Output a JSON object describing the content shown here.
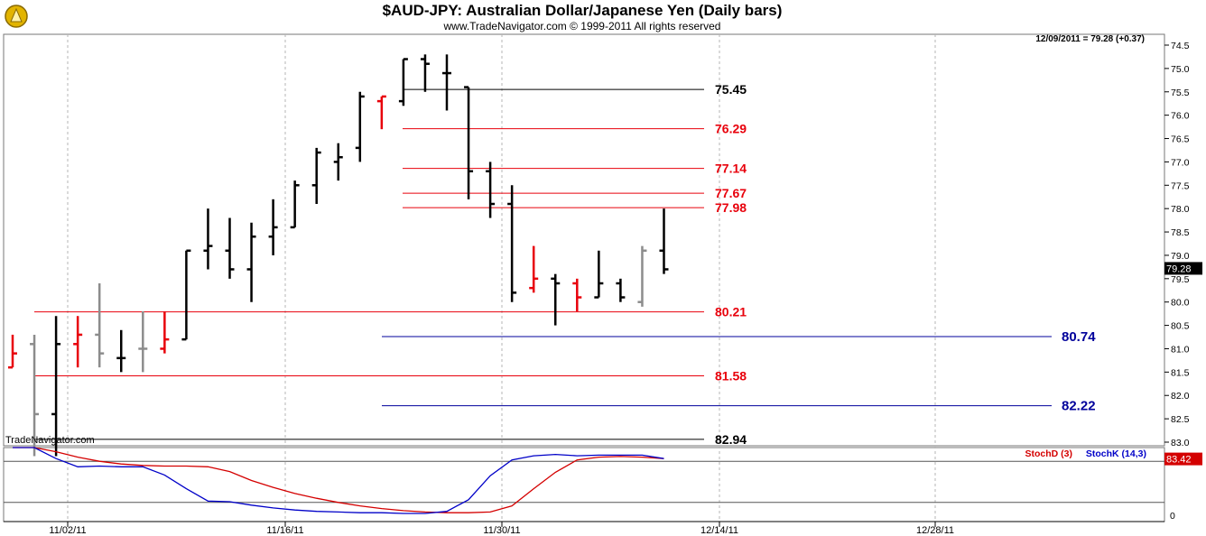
{
  "title": "$AUD-JPY:  Australian Dollar/Japanese Yen  (Daily bars)",
  "subtitle": "www.TradeNavigator.com © 1999-2011 All rights reserved",
  "last_price_label": "12/09/2011 = 79.28 (+0.37)",
  "last_price_box": "79.28",
  "watermark": "TradeNavigator.com",
  "colors": {
    "black": "#000000",
    "red": "#e8000b",
    "gray": "#8c8c8c",
    "blue": "#00009b",
    "stochD": "#d40000",
    "stochK": "#0000c8",
    "grid": "#b4b4b4"
  },
  "chart_data": [
    {
      "type": "ohlc",
      "x_tick_labels": [
        "11/02/11",
        "11/16/11",
        "11/30/11",
        "12/14/11",
        "12/28/11"
      ],
      "y_tick_labels": [
        "74.5",
        "75.0",
        "75.5",
        "76.0",
        "76.5",
        "77.0",
        "77.5",
        "78.0",
        "78.5",
        "79.0",
        "79.5",
        "80.0",
        "80.5",
        "81.0",
        "81.5",
        "82.0",
        "82.5",
        "83.0"
      ],
      "ylim": [
        74.5,
        83.0
      ],
      "grid": "vertical dashed",
      "bars": [
        {
          "o": 81.4,
          "h": 81.4,
          "l": 80.7,
          "c": 81.1,
          "color": "red"
        },
        {
          "o": 80.9,
          "h": 83.3,
          "l": 80.7,
          "c": 82.4,
          "color": "gray"
        },
        {
          "o": 82.4,
          "h": 83.3,
          "l": 80.3,
          "c": 80.9,
          "color": "black"
        },
        {
          "o": 80.9,
          "h": 81.4,
          "l": 80.3,
          "c": 80.7,
          "color": "red"
        },
        {
          "o": 80.7,
          "h": 81.4,
          "l": 79.6,
          "c": 81.1,
          "color": "gray"
        },
        {
          "o": 81.2,
          "h": 81.5,
          "l": 80.6,
          "c": 81.2,
          "color": "black"
        },
        {
          "o": 81.0,
          "h": 81.5,
          "l": 80.2,
          "c": 81.0,
          "color": "gray"
        },
        {
          "o": 81.0,
          "h": 81.1,
          "l": 80.2,
          "c": 80.8,
          "color": "red"
        },
        {
          "o": 80.8,
          "h": 80.8,
          "l": 78.9,
          "c": 78.9,
          "color": "black"
        },
        {
          "o": 78.9,
          "h": 79.3,
          "l": 78.0,
          "c": 78.8,
          "color": "black"
        },
        {
          "o": 78.9,
          "h": 79.5,
          "l": 78.2,
          "c": 79.3,
          "color": "black"
        },
        {
          "o": 79.3,
          "h": 80.0,
          "l": 78.3,
          "c": 78.6,
          "color": "black"
        },
        {
          "o": 78.6,
          "h": 79.0,
          "l": 77.8,
          "c": 78.4,
          "color": "black"
        },
        {
          "o": 78.4,
          "h": 78.4,
          "l": 77.4,
          "c": 77.5,
          "color": "black"
        },
        {
          "o": 77.5,
          "h": 77.9,
          "l": 76.7,
          "c": 76.8,
          "color": "black"
        },
        {
          "o": 77.0,
          "h": 77.4,
          "l": 76.6,
          "c": 76.9,
          "color": "black"
        },
        {
          "o": 76.7,
          "h": 77.0,
          "l": 75.5,
          "c": 75.6,
          "color": "black"
        },
        {
          "o": 75.7,
          "h": 76.3,
          "l": 75.6,
          "c": 75.6,
          "color": "red"
        },
        {
          "o": 75.7,
          "h": 75.8,
          "l": 74.8,
          "c": 74.8,
          "color": "black"
        },
        {
          "o": 74.8,
          "h": 75.5,
          "l": 74.7,
          "c": 74.9,
          "color": "black"
        },
        {
          "o": 75.1,
          "h": 75.9,
          "l": 74.7,
          "c": 75.1,
          "color": "black"
        },
        {
          "o": 75.4,
          "h": 77.8,
          "l": 75.4,
          "c": 77.2,
          "color": "black"
        },
        {
          "o": 77.2,
          "h": 78.2,
          "l": 77.0,
          "c": 77.9,
          "color": "black"
        },
        {
          "o": 77.9,
          "h": 80.0,
          "l": 77.5,
          "c": 79.8,
          "color": "black"
        },
        {
          "o": 79.7,
          "h": 79.8,
          "l": 78.8,
          "c": 79.5,
          "color": "red"
        },
        {
          "o": 79.5,
          "h": 80.5,
          "l": 79.4,
          "c": 79.6,
          "color": "black"
        },
        {
          "o": 79.6,
          "h": 80.2,
          "l": 79.5,
          "c": 79.9,
          "color": "red"
        },
        {
          "o": 79.9,
          "h": 79.9,
          "l": 78.9,
          "c": 79.6,
          "color": "black"
        },
        {
          "o": 79.6,
          "h": 80.0,
          "l": 79.5,
          "c": 79.9,
          "color": "black"
        },
        {
          "o": 80.0,
          "h": 80.1,
          "l": 78.8,
          "c": 78.9,
          "color": "gray"
        },
        {
          "o": 78.9,
          "h": 79.4,
          "l": 78.0,
          "c": 79.3,
          "color": "black"
        }
      ],
      "levels": [
        {
          "value": 82.94,
          "label": "82.94",
          "color": "black",
          "x_start_bar": 0
        },
        {
          "value": 82.22,
          "label": "82.22",
          "color": "blue",
          "x_start_bar": 17
        },
        {
          "value": 81.58,
          "label": "81.58",
          "color": "red",
          "x_start_bar": 0
        },
        {
          "value": 80.74,
          "label": "80.74",
          "color": "blue",
          "x_start_bar": 17
        },
        {
          "value": 80.21,
          "label": "80.21",
          "color": "red",
          "x_start_bar": 0
        },
        {
          "value": 77.98,
          "label": "77.98",
          "color": "red",
          "x_start_bar": 18
        },
        {
          "value": 77.67,
          "label": "77.67",
          "color": "red",
          "x_start_bar": 18
        },
        {
          "value": 77.14,
          "label": "77.14",
          "color": "red",
          "x_start_bar": 18
        },
        {
          "value": 76.29,
          "label": "76.29",
          "color": "red",
          "x_start_bar": 18
        },
        {
          "value": 75.45,
          "label": "75.45",
          "color": "black",
          "x_start_bar": 18
        }
      ]
    },
    {
      "type": "line",
      "legend": [
        "StochD (3)",
        "StochK (14,3)"
      ],
      "legend_placement": "top-right",
      "y_tick_labels": [
        "0"
      ],
      "last_value_box": "83.42",
      "series": [
        {
          "name": "StochD (3)",
          "color": "stochD",
          "values": [
            100,
            100,
            94,
            86,
            80,
            76,
            74,
            73,
            73,
            72,
            65,
            52,
            42,
            33,
            26,
            20,
            15,
            11,
            8,
            6,
            5,
            5,
            6,
            15,
            40,
            64,
            82,
            86,
            87,
            86,
            84
          ]
        },
        {
          "name": "StochK (14,3)",
          "color": "stochK",
          "values": [
            100,
            100,
            84,
            72,
            73,
            72,
            72,
            60,
            40,
            22,
            21,
            16,
            12,
            9,
            7,
            6,
            5,
            5,
            4,
            4,
            7,
            24,
            59,
            82,
            88,
            90,
            88,
            89,
            89,
            89,
            84
          ]
        }
      ]
    }
  ]
}
